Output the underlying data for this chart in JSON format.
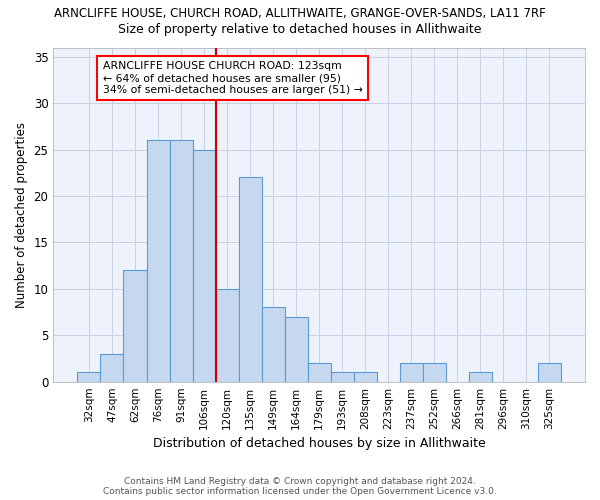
{
  "title1": "ARNCLIFFE HOUSE, CHURCH ROAD, ALLITHWAITE, GRANGE-OVER-SANDS, LA11 7RF",
  "title2": "Size of property relative to detached houses in Allithwaite",
  "xlabel": "Distribution of detached houses by size in Allithwaite",
  "ylabel": "Number of detached properties",
  "categories": [
    "32sqm",
    "47sqm",
    "62sqm",
    "76sqm",
    "91sqm",
    "106sqm",
    "120sqm",
    "135sqm",
    "149sqm",
    "164sqm",
    "179sqm",
    "193sqm",
    "208sqm",
    "223sqm",
    "237sqm",
    "252sqm",
    "266sqm",
    "281sqm",
    "296sqm",
    "310sqm",
    "325sqm"
  ],
  "values": [
    1,
    3,
    12,
    26,
    26,
    25,
    10,
    22,
    8,
    7,
    2,
    1,
    1,
    0,
    2,
    2,
    0,
    1,
    0,
    0,
    2
  ],
  "bar_color": "#c5d8f0",
  "bar_edge_color": "#5b9bd5",
  "vline_index": 6,
  "annotation_title": "ARNCLIFFE HOUSE CHURCH ROAD: 123sqm",
  "annotation_line1": "← 64% of detached houses are smaller (95)",
  "annotation_line2": "34% of semi-detached houses are larger (51) →",
  "vline_color": "#cc0000",
  "ylim": [
    0,
    36
  ],
  "yticks": [
    0,
    5,
    10,
    15,
    20,
    25,
    30,
    35
  ],
  "footer1": "Contains HM Land Registry data © Crown copyright and database right 2024.",
  "footer2": "Contains public sector information licensed under the Open Government Licence v3.0.",
  "bg_color": "#ffffff",
  "plot_bg_color": "#eef2fb",
  "grid_color": "#c8d0e8"
}
